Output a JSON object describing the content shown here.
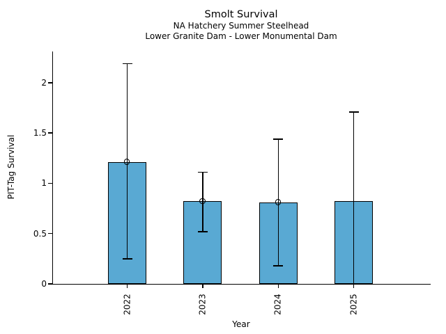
{
  "chart_data": {
    "type": "bar",
    "title": "Smolt Survival",
    "subtitle1": "NA Hatchery Summer Steelhead",
    "subtitle2": "Lower Granite Dam - Lower Monumental Dam",
    "xlabel": "Year",
    "ylabel": "PIT-Tag Survival",
    "categories": [
      "2022",
      "2023",
      "2024",
      "2025"
    ],
    "values": [
      1.21,
      0.82,
      0.81,
      0.82
    ],
    "error_low": [
      0.25,
      0.52,
      0.18,
      0.0
    ],
    "error_high": [
      2.19,
      1.11,
      1.44,
      1.71
    ],
    "point_marker": [
      true,
      true,
      true,
      false
    ],
    "ytick_labels": [
      "0",
      "0.5",
      "1",
      "1.5",
      "2"
    ],
    "ytick_values": [
      0,
      0.5,
      1,
      1.5,
      2
    ],
    "ylim": [
      0,
      2.31
    ],
    "grid": false,
    "legend": "none",
    "bar_color": "#59a9d3",
    "edge_color": "#000000"
  }
}
